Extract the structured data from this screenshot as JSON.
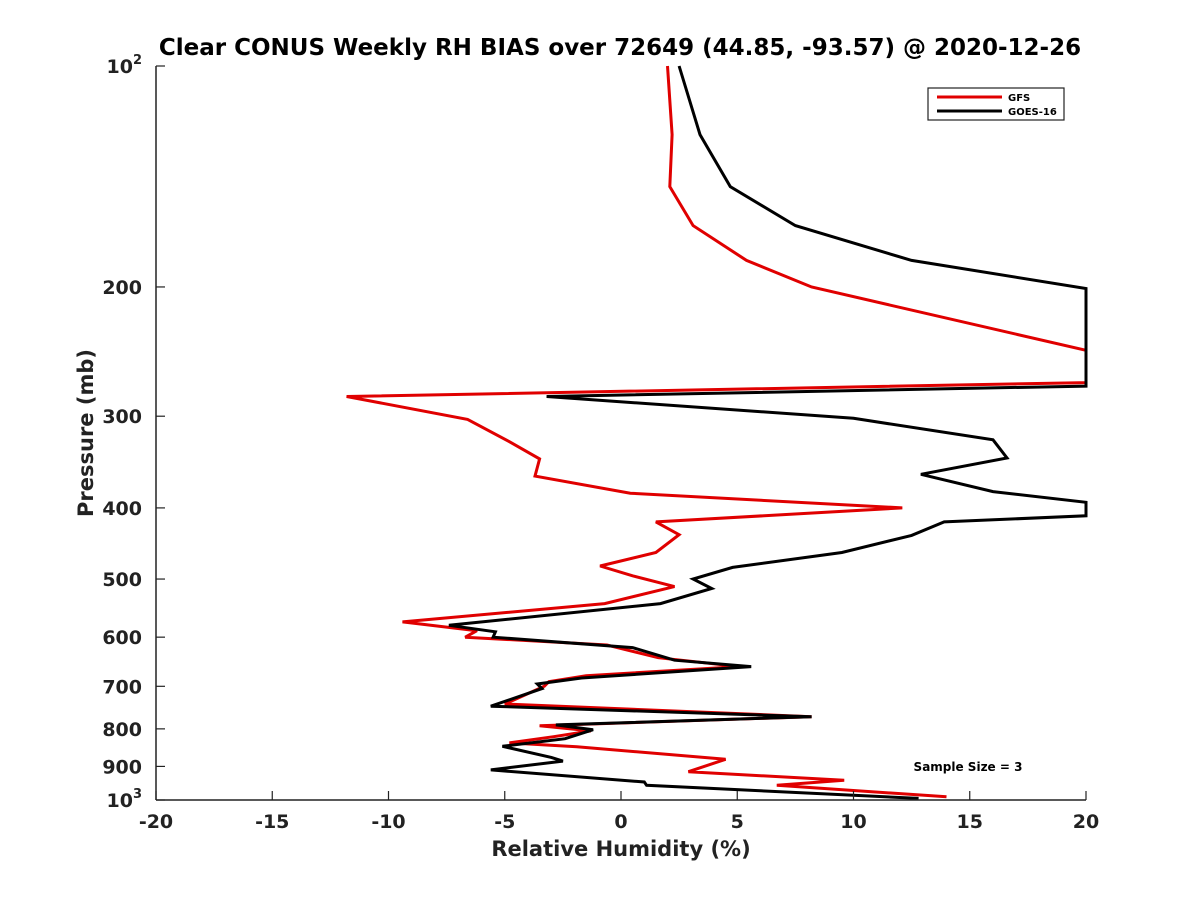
{
  "chart_data": {
    "type": "line",
    "title": "Clear CONUS Weekly RH BIAS over 72649 (44.85, -93.57) @ 2020-12-26",
    "xlabel": "Relative Humidity (%)",
    "ylabel": "Pressure (mb)",
    "xlim": [
      -20,
      20
    ],
    "ylim": [
      100,
      1000
    ],
    "yscale": "log",
    "y_reversed": true,
    "grid": false,
    "legend_position": "top-right",
    "x_ticks": [
      "-20",
      "-15",
      "-10",
      "-5",
      "0",
      "5",
      "10",
      "15",
      "20"
    ],
    "y_ticks": [
      {
        "value": 100,
        "base": "10",
        "exp": "2"
      },
      {
        "value": 200,
        "label": "200"
      },
      {
        "value": 300,
        "label": "300"
      },
      {
        "value": 400,
        "label": "400"
      },
      {
        "value": 500,
        "label": "500"
      },
      {
        "value": 600,
        "label": "600"
      },
      {
        "value": 700,
        "label": "700"
      },
      {
        "value": 800,
        "label": "800"
      },
      {
        "value": 900,
        "label": "900"
      },
      {
        "value": 1000,
        "base": "10",
        "exp": "3"
      }
    ],
    "series": [
      {
        "name": "GFS",
        "color": "#e00000",
        "points": [
          [
            2,
            100
          ],
          [
            2.2,
            124
          ],
          [
            2.1,
            146
          ],
          [
            3.1,
            165
          ],
          [
            5.4,
            184
          ],
          [
            8.2,
            200
          ],
          [
            20,
            244
          ],
          [
            20,
            270
          ],
          [
            -11.8,
            282
          ],
          [
            -6.6,
            303
          ],
          [
            -4.8,
            325
          ],
          [
            -3.5,
            343
          ],
          [
            -3.7,
            362
          ],
          [
            0.4,
            382
          ],
          [
            12.1,
            400
          ],
          [
            1.5,
            418
          ],
          [
            2.5,
            435
          ],
          [
            1.5,
            460
          ],
          [
            -0.9,
            480
          ],
          [
            0.5,
            495
          ],
          [
            2.3,
            512
          ],
          [
            -0.7,
            540
          ],
          [
            -9.4,
            572
          ],
          [
            -6.2,
            588
          ],
          [
            -6.7,
            600
          ],
          [
            -0.6,
            615
          ],
          [
            1.6,
            640
          ],
          [
            5.1,
            658
          ],
          [
            -1.5,
            677
          ],
          [
            -3.1,
            690
          ],
          [
            -3.3,
            700
          ],
          [
            -5,
            740
          ],
          [
            8.2,
            770
          ],
          [
            -3.5,
            792
          ],
          [
            -1.3,
            805
          ],
          [
            -2.9,
            820
          ],
          [
            -4.8,
            836
          ],
          [
            -1.9,
            846
          ],
          [
            4.5,
            880
          ],
          [
            2.9,
            915
          ],
          [
            9.6,
            940
          ],
          [
            6.7,
            955
          ],
          [
            14,
            990
          ]
        ]
      },
      {
        "name": "GOES-16",
        "color": "#000000",
        "points": [
          [
            2.5,
            100
          ],
          [
            3.4,
            124
          ],
          [
            4.7,
            146
          ],
          [
            7.5,
            165
          ],
          [
            12.5,
            184
          ],
          [
            20,
            201
          ],
          [
            20,
            273
          ],
          [
            -3.2,
            282
          ],
          [
            10,
            302
          ],
          [
            16,
            323
          ],
          [
            16.6,
            342
          ],
          [
            12.9,
            360
          ],
          [
            16,
            380
          ],
          [
            20,
            393
          ],
          [
            20,
            410
          ],
          [
            13.9,
            418
          ],
          [
            12.5,
            436
          ],
          [
            9.5,
            460
          ],
          [
            4.8,
            482
          ],
          [
            3.1,
            500
          ],
          [
            3.9,
            515
          ],
          [
            1.7,
            540
          ],
          [
            -7.4,
            578
          ],
          [
            -5.4,
            590
          ],
          [
            -5.5,
            600
          ],
          [
            0.5,
            620
          ],
          [
            2.3,
            645
          ],
          [
            5.6,
            658
          ],
          [
            -1.7,
            682
          ],
          [
            -3.6,
            695
          ],
          [
            -3.4,
            705
          ],
          [
            -5.6,
            745
          ],
          [
            8.2,
            770
          ],
          [
            -2.8,
            790
          ],
          [
            -1.2,
            802
          ],
          [
            -2.4,
            825
          ],
          [
            -5.1,
            845
          ],
          [
            -3,
            875
          ],
          [
            -2.5,
            885
          ],
          [
            -5.6,
            910
          ],
          [
            1,
            945
          ],
          [
            1.1,
            955
          ],
          [
            12.8,
            995
          ]
        ]
      }
    ],
    "annotation": "Sample Size = 3"
  }
}
